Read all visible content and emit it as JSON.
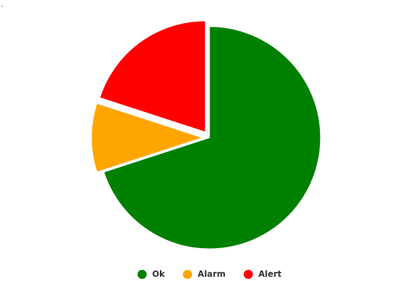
{
  "corner_text": "¸",
  "chart_data": {
    "type": "pie",
    "title": "",
    "categories": [
      "Ok",
      "Alarm",
      "Alert"
    ],
    "values": [
      70,
      10,
      20
    ],
    "colors": [
      "#008000",
      "#ffa500",
      "#ff0000"
    ],
    "exploded": [
      false,
      true,
      true
    ],
    "legend_position": "bottom-center"
  }
}
